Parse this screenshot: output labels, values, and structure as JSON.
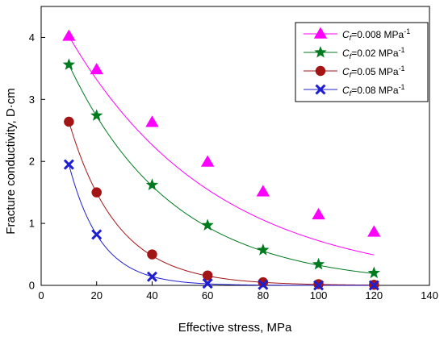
{
  "chart_data": {
    "type": "scatter",
    "title": "",
    "xlabel": "Effective stress, MPa",
    "ylabel": "Fracture conductivity, D·cm",
    "xlim": [
      0,
      140
    ],
    "ylim": [
      0,
      4.5
    ],
    "xticks": [
      0,
      20,
      40,
      60,
      80,
      100,
      120,
      140
    ],
    "yticks": [
      0,
      1,
      2,
      3,
      4
    ],
    "grid": false,
    "legend_position": "top-right",
    "legend_units": "MPa",
    "x": [
      10,
      20,
      40,
      60,
      80,
      100,
      120
    ],
    "series": [
      {
        "legend_symbol": "C",
        "legend_subscript": "f",
        "legend_value": "=0.008",
        "name": "Cf=0.008 MPa-1",
        "color": "#ff00ff",
        "marker": "triangle-icon",
        "values": [
          4.02,
          3.48,
          2.63,
          1.99,
          1.51,
          1.14,
          0.86
        ],
        "fit_decay": 0.0191
      },
      {
        "legend_symbol": "C",
        "legend_subscript": "f",
        "legend_value": "=0.02",
        "name": "Cf=0.02 MPa-1",
        "color": "#007a1f",
        "marker": "star-icon",
        "values": [
          3.56,
          2.74,
          1.62,
          0.97,
          0.57,
          0.34,
          0.2
        ],
        "fit_decay": 0.0266
      },
      {
        "legend_symbol": "C",
        "legend_subscript": "f",
        "legend_value": "=0.05",
        "name": "Cf=0.05 MPa-1",
        "color": "#a31515",
        "marker": "circle-icon",
        "values": [
          2.64,
          1.5,
          0.5,
          0.16,
          0.05,
          0.02,
          0.01
        ],
        "fit_decay": 0.057
      },
      {
        "legend_symbol": "C",
        "legend_subscript": "f",
        "legend_value": "=0.08",
        "name": "Cf=0.08 MPa-1",
        "color": "#1f1fd0",
        "marker": "x-icon",
        "values": [
          1.95,
          0.82,
          0.14,
          0.03,
          0.01,
          0.0,
          0.0
        ],
        "fit_decay": 0.087
      }
    ]
  }
}
